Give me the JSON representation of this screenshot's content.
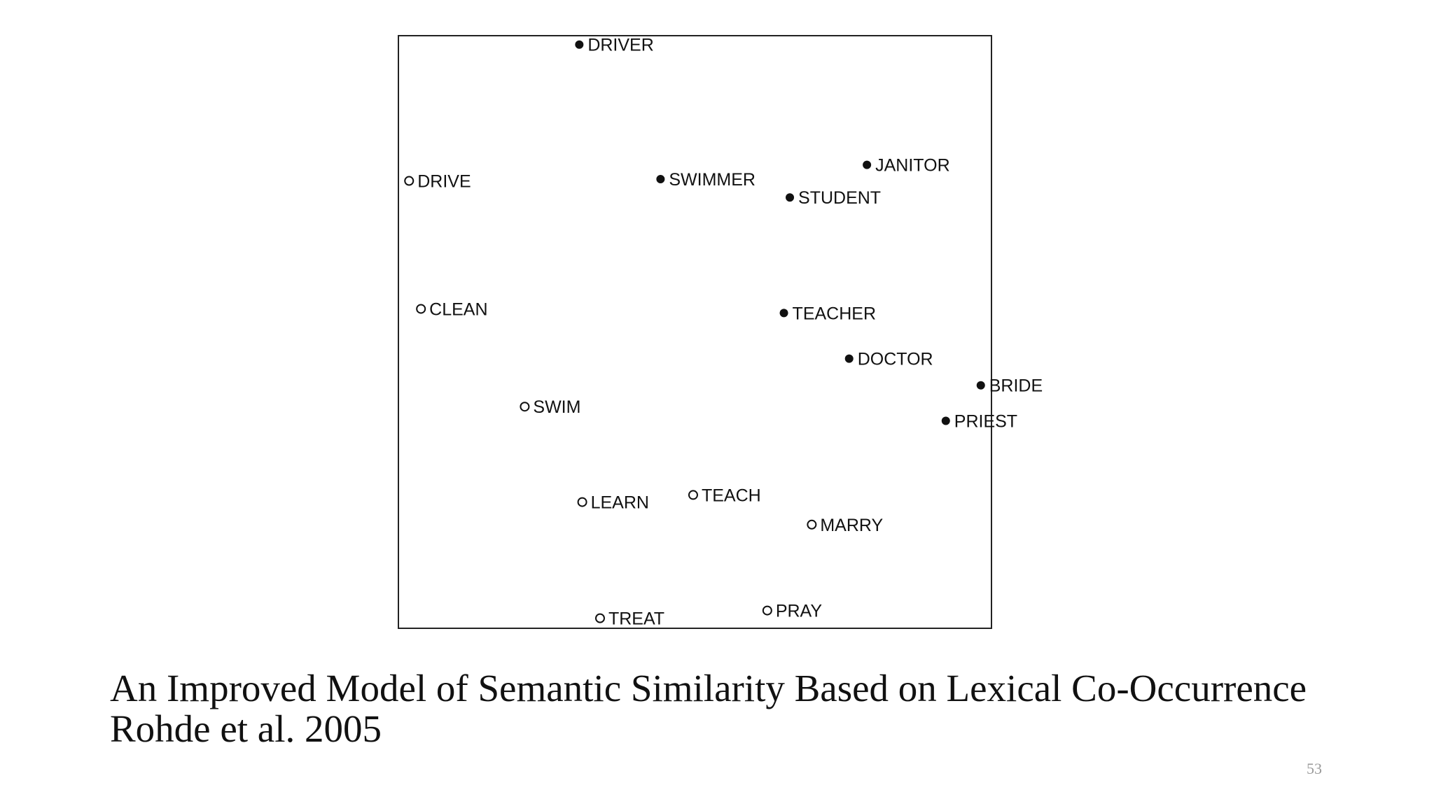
{
  "chart_data": {
    "type": "scatter",
    "title": "",
    "xlabel": "",
    "ylabel": "",
    "grid": false,
    "legend": "none",
    "series": [
      {
        "marker": "filled-circle",
        "color": "#111111",
        "points": [
          {
            "label": "DRIVER",
            "x": 0.305,
            "y": 0.985
          },
          {
            "label": "SWIMMER",
            "x": 0.442,
            "y": 0.758
          },
          {
            "label": "JANITOR",
            "x": 0.79,
            "y": 0.782
          },
          {
            "label": "STUDENT",
            "x": 0.66,
            "y": 0.727
          },
          {
            "label": "TEACHER",
            "x": 0.65,
            "y": 0.532
          },
          {
            "label": "DOCTOR",
            "x": 0.76,
            "y": 0.455
          },
          {
            "label": "BRIDE",
            "x": 0.982,
            "y": 0.41
          },
          {
            "label": "PRIEST",
            "x": 0.923,
            "y": 0.35
          }
        ]
      },
      {
        "marker": "open-circle",
        "color": "#111111",
        "points": [
          {
            "label": "DRIVE",
            "x": 0.018,
            "y": 0.755
          },
          {
            "label": "CLEAN",
            "x": 0.038,
            "y": 0.539
          },
          {
            "label": "SWIM",
            "x": 0.213,
            "y": 0.374
          },
          {
            "label": "LEARN",
            "x": 0.31,
            "y": 0.213
          },
          {
            "label": "TEACH",
            "x": 0.497,
            "y": 0.225
          },
          {
            "label": "MARRY",
            "x": 0.697,
            "y": 0.175
          },
          {
            "label": "TREAT",
            "x": 0.34,
            "y": 0.017
          },
          {
            "label": "PRAY",
            "x": 0.622,
            "y": 0.03
          }
        ]
      }
    ]
  },
  "caption": {
    "line1": "An Improved Model of Semantic Similarity Based on Lexical Co-Occurrence",
    "line2": "Rohde et al. 2005"
  },
  "page_number": "53"
}
